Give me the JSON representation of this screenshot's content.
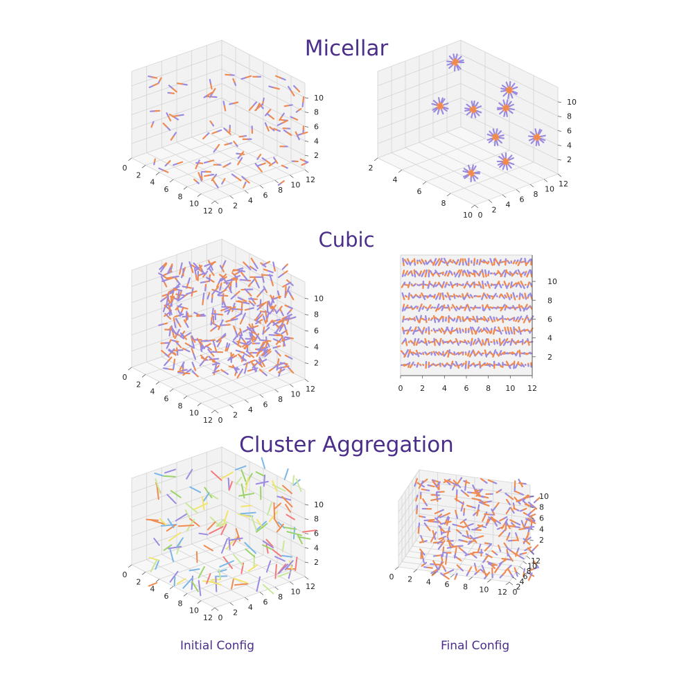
{
  "titles": {
    "micellar": "Micellar",
    "cubic": "Cubic",
    "cluster": "Cluster Aggregation"
  },
  "captions": {
    "initial": "Initial Config",
    "final": "Final Config"
  },
  "colors": {
    "head": "#9b8ae0",
    "tail": "#ef8a50",
    "axis": "#555555",
    "pane": "#f2f2f2",
    "grid": "#d3d3d3",
    "title": "#4b2e8a"
  },
  "chart_data": [
    {
      "type": "scatter",
      "name": "micellar-initial",
      "title": "Micellar",
      "xlim": [
        0,
        12
      ],
      "ylim": [
        0,
        12
      ],
      "zlim": [
        0,
        12
      ],
      "x_ticks": [
        "0",
        "2",
        "4",
        "6",
        "8",
        "10",
        "12"
      ],
      "y_ticks": [
        "0",
        "2",
        "4",
        "6",
        "8",
        "10",
        "12"
      ],
      "z_ticks": [
        "2",
        "4",
        "6",
        "8",
        "10"
      ]
    },
    {
      "type": "scatter",
      "name": "micellar-final",
      "xlim": [
        2,
        10
      ],
      "ylim": [
        0,
        12
      ],
      "zlim": [
        0,
        12
      ],
      "x_ticks": [
        "2",
        "4",
        "6",
        "8",
        "10"
      ],
      "y_ticks": [
        "0",
        "2",
        "4",
        "6",
        "8",
        "10",
        "12"
      ],
      "z_ticks": [
        "2",
        "4",
        "6",
        "8",
        "10"
      ]
    },
    {
      "type": "scatter",
      "name": "cubic-initial",
      "title": "Cubic",
      "xlim": [
        0,
        12
      ],
      "ylim": [
        0,
        12
      ],
      "zlim": [
        0,
        12
      ],
      "x_ticks": [
        "0",
        "2",
        "4",
        "6",
        "8",
        "10",
        "12"
      ],
      "y_ticks": [
        "0",
        "2",
        "4",
        "6",
        "8",
        "10",
        "12"
      ],
      "z_ticks": [
        "2",
        "4",
        "6",
        "8",
        "10"
      ]
    },
    {
      "type": "scatter",
      "name": "cubic-final",
      "xlim": [
        0,
        12
      ],
      "zlim": [
        0,
        12
      ],
      "x_ticks": [
        "0",
        "2",
        "4",
        "6",
        "8",
        "10",
        "12"
      ],
      "z_ticks": [
        "2",
        "4",
        "6",
        "8",
        "10"
      ]
    },
    {
      "type": "scatter",
      "name": "cluster-initial",
      "title": "Cluster Aggregation",
      "xlim": [
        0,
        12
      ],
      "ylim": [
        0,
        12
      ],
      "zlim": [
        0,
        12
      ],
      "x_ticks": [
        "0",
        "2",
        "4",
        "6",
        "8",
        "10",
        "12"
      ],
      "y_ticks": [
        "0",
        "2",
        "4",
        "6",
        "8",
        "10",
        "12"
      ],
      "z_ticks": [
        "2",
        "4",
        "6",
        "8",
        "10"
      ],
      "caption": "Initial Config"
    },
    {
      "type": "scatter",
      "name": "cluster-final",
      "xlim": [
        0,
        12
      ],
      "ylim": [
        0,
        12
      ],
      "zlim": [
        0,
        12
      ],
      "x_ticks": [
        "0",
        "2",
        "4",
        "6",
        "8",
        "10",
        "12"
      ],
      "y_ticks": [
        "0",
        "2",
        "4",
        "6",
        "8",
        "10",
        "12"
      ],
      "z_ticks": [
        "2",
        "4",
        "6",
        "8",
        "10"
      ],
      "caption": "Final Config"
    }
  ]
}
